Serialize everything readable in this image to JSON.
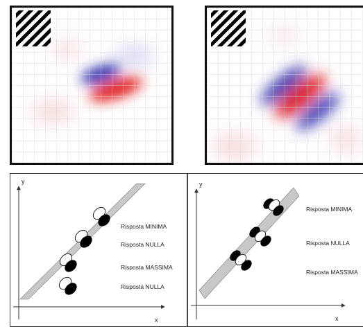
{
  "receptive_fields": [
    {
      "id": "left",
      "stimulus_icon": "diagonal-stripes-icon"
    },
    {
      "id": "right",
      "stimulus_icon": "diagonal-stripes-icon"
    }
  ],
  "diagrams": [
    {
      "id": "left",
      "axis_y": "y",
      "axis_x": "x",
      "responses": [
        "Risposta MINIMA",
        "Risposta NULLA",
        "Risposta MASSIMA",
        "Risposta NULLA"
      ]
    },
    {
      "id": "right",
      "axis_y": "y",
      "axis_x": "x",
      "responses": [
        "Risposta MINIMA",
        "Risposta NULLA",
        "Risposta MASSIMA"
      ]
    }
  ],
  "colors": {
    "on_region": "#e02020",
    "off_region": "#2a2aa8",
    "bar": "#c8c8c8",
    "frame": "#111111"
  }
}
